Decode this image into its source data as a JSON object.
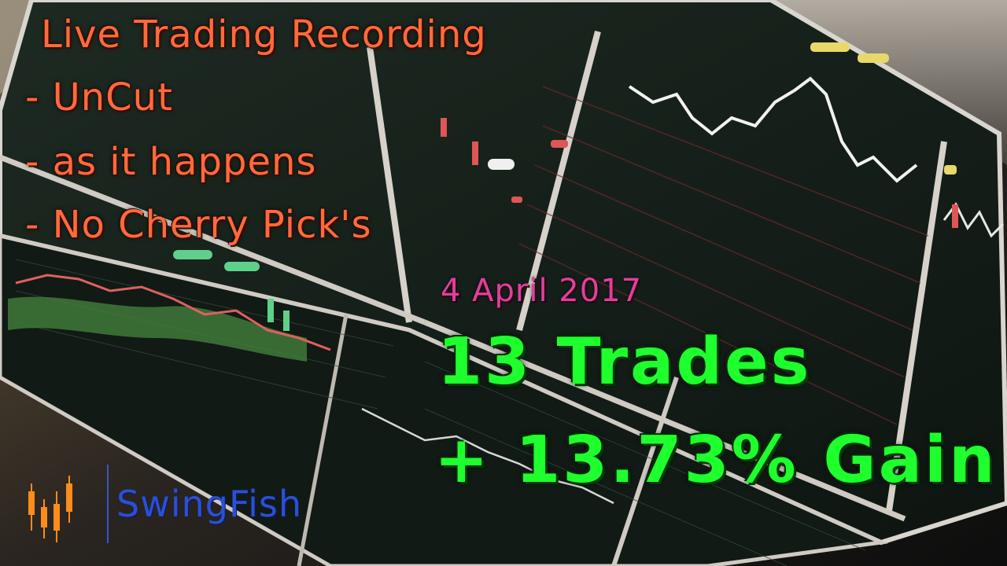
{
  "headline": {
    "title": "Live Trading Recording",
    "line_1": "- UnCut",
    "line_2": "- as it happens",
    "line_3": "- No Cherry Pick's"
  },
  "date": "4 April 2017",
  "stats": {
    "trades": "13 Trades",
    "gain": "+ 13.73% Gain"
  },
  "logo": {
    "name": "SwingFish",
    "icon": "candlestick-bars-icon"
  },
  "colors": {
    "headline": "#ff6a3d",
    "date": "#e0409a",
    "stats": "#1fff2e",
    "logo_text": "#2b4fd6",
    "logo_bars": "#ff8c1a"
  },
  "background": {
    "subject": "trading-monitor-charts-photo"
  }
}
